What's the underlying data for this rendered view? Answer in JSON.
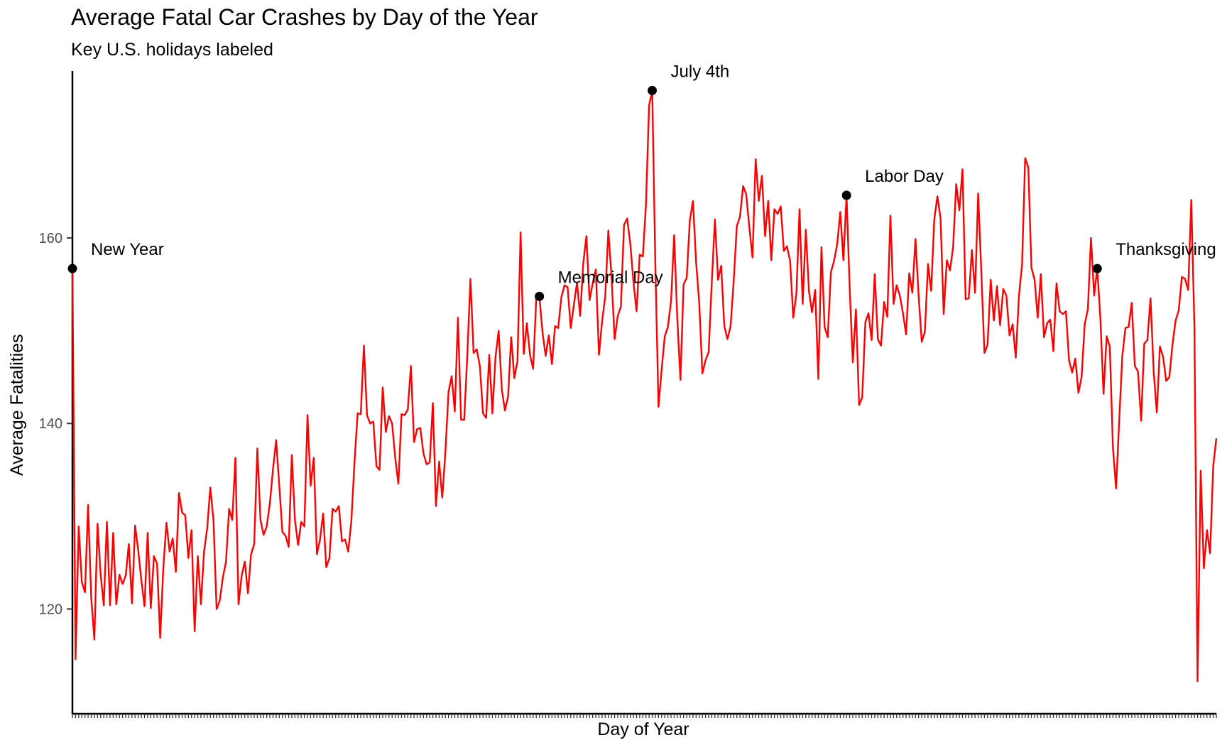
{
  "chart_data": {
    "type": "line",
    "title": "Average Fatal Car Crashes by Day of the Year",
    "subtitle": "Key U.S. holidays labeled",
    "xlabel": "Day of Year",
    "ylabel": "Average Fatalities",
    "ylim": [
      108.7,
      178.0
    ],
    "yticks": [
      120,
      140,
      160
    ],
    "xlim": [
      1,
      366
    ],
    "grid": false,
    "legend": "none",
    "line_color": "#ff0000",
    "series": [
      {
        "x_start": 1,
        "values": [
          156.7,
          114.6,
          128.9,
          122.9,
          121.8,
          131.2,
          121.2,
          116.7,
          129.2,
          123.7,
          120.4,
          129.4,
          120.4,
          128.2,
          120.5,
          123.7,
          122.7,
          123.6,
          127.0,
          120.6,
          129.0,
          126.3,
          123.1,
          120.3,
          128.2,
          120.1,
          125.7,
          124.9,
          116.9,
          124.4,
          129.3,
          126.2,
          127.6,
          124.0,
          132.5,
          130.4,
          130.1,
          125.5,
          128.5,
          117.6,
          125.7,
          120.5,
          126.2,
          128.7,
          133.1,
          129.6,
          120.0,
          120.9,
          123.4,
          125.1,
          130.8,
          129.6,
          136.3,
          120.5,
          123.6,
          125.1,
          121.7,
          125.9,
          127.0,
          137.3,
          129.6,
          128.0,
          128.9,
          131.4,
          135.1,
          138.2,
          133.3,
          128.3,
          127.9,
          126.7,
          136.6,
          129.6,
          126.9,
          129.4,
          128.9,
          140.9,
          133.3,
          136.3,
          125.9,
          127.5,
          130.3,
          124.5,
          125.5,
          130.8,
          130.5,
          131.1,
          127.3,
          127.5,
          126.2,
          129.5,
          135.8,
          141.1,
          141.0,
          148.4,
          140.9,
          140.0,
          140.2,
          135.4,
          135.0,
          143.9,
          139.1,
          140.8,
          140.0,
          136.3,
          133.5,
          141.0,
          140.9,
          141.5,
          146.2,
          138.0,
          139.4,
          139.5,
          136.8,
          135.6,
          135.8,
          142.2,
          131.1,
          135.9,
          132.0,
          136.9,
          143.4,
          145.1,
          141.3,
          151.4,
          140.4,
          140.4,
          147.4,
          155.6,
          147.6,
          148.0,
          146.2,
          141.1,
          140.6,
          147.4,
          141.1,
          147.2,
          150.0,
          143.7,
          141.4,
          142.9,
          149.3,
          144.9,
          146.7,
          160.6,
          147.5,
          150.8,
          147.4,
          145.9,
          153.5,
          153.7,
          149.8,
          147.3,
          149.5,
          146.4,
          150.5,
          150.3,
          153.6,
          154.9,
          154.7,
          150.3,
          152.8,
          155.2,
          151.6,
          157.3,
          160.2,
          153.3,
          155.1,
          156.6,
          147.4,
          151.0,
          153.7,
          160.8,
          155.9,
          149.1,
          151.6,
          152.6,
          161.4,
          162.1,
          159.4,
          155.3,
          152.1,
          158.2,
          158.0,
          163.6,
          174.3,
          175.9,
          157.0,
          141.8,
          145.8,
          149.4,
          150.4,
          153.2,
          160.3,
          151.3,
          144.7,
          155.0,
          155.7,
          161.9,
          164.0,
          157.4,
          153.0,
          145.4,
          146.8,
          147.7,
          155.2,
          162.0,
          155.5,
          157.0,
          150.5,
          149.1,
          150.5,
          155.4,
          161.3,
          162.3,
          165.6,
          164.7,
          161.1,
          157.9,
          168.5,
          164.0,
          166.7,
          160.2,
          164.0,
          157.6,
          163.1,
          162.6,
          163.4,
          158.6,
          159.1,
          157.5,
          151.4,
          154.0,
          163.1,
          152.9,
          160.9,
          154.3,
          152.0,
          154.4,
          144.8,
          159.0,
          150.4,
          149.3,
          156.3,
          157.5,
          159.3,
          162.8,
          157.6,
          164.6,
          154.6,
          146.6,
          152.3,
          142.0,
          142.8,
          150.9,
          151.9,
          149.0,
          156.1,
          149.1,
          148.4,
          153.1,
          151.5,
          162.4,
          152.9,
          154.9,
          153.8,
          151.9,
          149.6,
          156.2,
          154.1,
          159.9,
          153.8,
          148.8,
          149.9,
          157.2,
          154.3,
          162.0,
          164.5,
          162.1,
          151.8,
          157.6,
          156.5,
          159.0,
          165.8,
          163.0,
          167.4,
          153.4,
          153.5,
          158.7,
          154.1,
          164.8,
          156.4,
          147.6,
          148.5,
          155.5,
          151.1,
          154.8,
          150.6,
          154.5,
          153.8,
          149.5,
          150.7,
          147.1,
          153.7,
          157.1,
          168.6,
          167.6,
          156.8,
          155.5,
          151.4,
          156.1,
          149.3,
          150.8,
          151.2,
          147.8,
          155.1,
          152.1,
          151.8,
          152.1,
          146.8,
          145.5,
          147.0,
          143.3,
          145.0,
          150.7,
          152.3,
          160.0,
          153.8,
          156.7,
          151.3,
          143.2,
          149.4,
          148.3,
          137.4,
          133.0,
          140.3,
          147.3,
          150.3,
          150.4,
          153.0,
          146.2,
          145.6,
          140.3,
          148.6,
          149.0,
          153.5,
          145.6,
          141.2,
          148.3,
          147.2,
          144.6,
          145.0,
          148.5,
          151.1,
          152.2,
          155.8,
          155.6,
          154.4,
          164.1,
          150.5,
          112.2,
          134.9,
          124.4,
          128.5,
          126.0,
          135.4,
          138.4
        ]
      }
    ],
    "annotations": [
      {
        "label": "New Year",
        "x": 1,
        "y": 156.7
      },
      {
        "label": "Memorial Day",
        "x": 150,
        "y": 153.7
      },
      {
        "label": "July 4th",
        "x": 186,
        "y": 175.9
      },
      {
        "label": "Labor Day",
        "x": 248,
        "y": 164.6
      },
      {
        "label": "Thanksgiving",
        "x": 328,
        "y": 156.7
      }
    ]
  }
}
